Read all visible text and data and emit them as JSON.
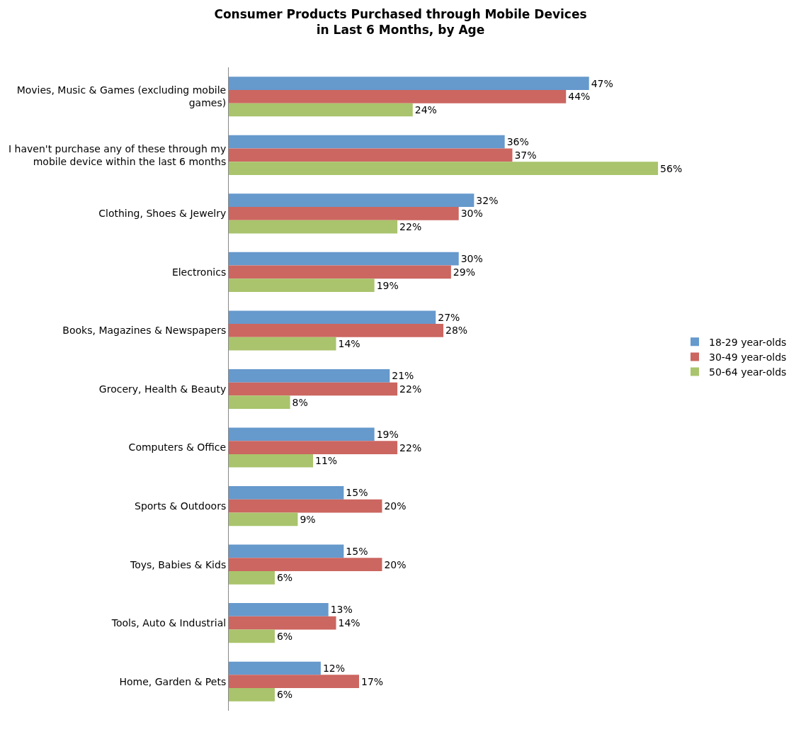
{
  "chart_data": {
    "type": "bar",
    "orientation": "horizontal",
    "title": "Consumer Products Purchased through Mobile Devices\nin Last 6 Months, by Age",
    "categories": [
      "Movies, Music & Games (excluding mobile games)",
      "I haven't purchase any of these through my mobile device within the last 6 months",
      "Clothing, Shoes & Jewelry",
      "Electronics",
      "Books, Magazines & Newspapers",
      "Grocery, Health & Beauty",
      "Computers & Office",
      "Sports & Outdoors",
      "Toys, Babies & Kids",
      "Tools, Auto & Industrial",
      "Home, Garden & Pets"
    ],
    "series": [
      {
        "name": "18-29 year-olds",
        "color": "#6699cc",
        "values": [
          47,
          36,
          32,
          30,
          27,
          21,
          19,
          15,
          15,
          13,
          12
        ],
        "value_labels": [
          "47%",
          "36%",
          "32%",
          "30%",
          "27%",
          "21%",
          "19%",
          "15%",
          "15%",
          "13%",
          "12%"
        ]
      },
      {
        "name": "30-49 year-olds",
        "color": "#cc6660",
        "values": [
          44,
          37,
          30,
          29,
          28,
          22,
          22,
          20,
          20,
          14,
          17
        ],
        "value_labels": [
          "44%",
          "37%",
          "30%",
          "29%",
          "28%",
          "22%",
          "22%",
          "20%",
          "20%",
          "14%",
          "17%"
        ]
      },
      {
        "name": "50-64 year-olds",
        "color": "#a9c46c",
        "values": [
          24,
          56,
          22,
          19,
          14,
          8,
          11,
          9,
          6,
          6,
          6
        ],
        "value_labels": [
          "24%",
          "56%",
          "22%",
          "19%",
          "14%",
          "8%",
          "11%",
          "9%",
          "6%",
          "6%",
          "6%"
        ]
      }
    ],
    "legend": "right",
    "tick_labels": "y"
  }
}
